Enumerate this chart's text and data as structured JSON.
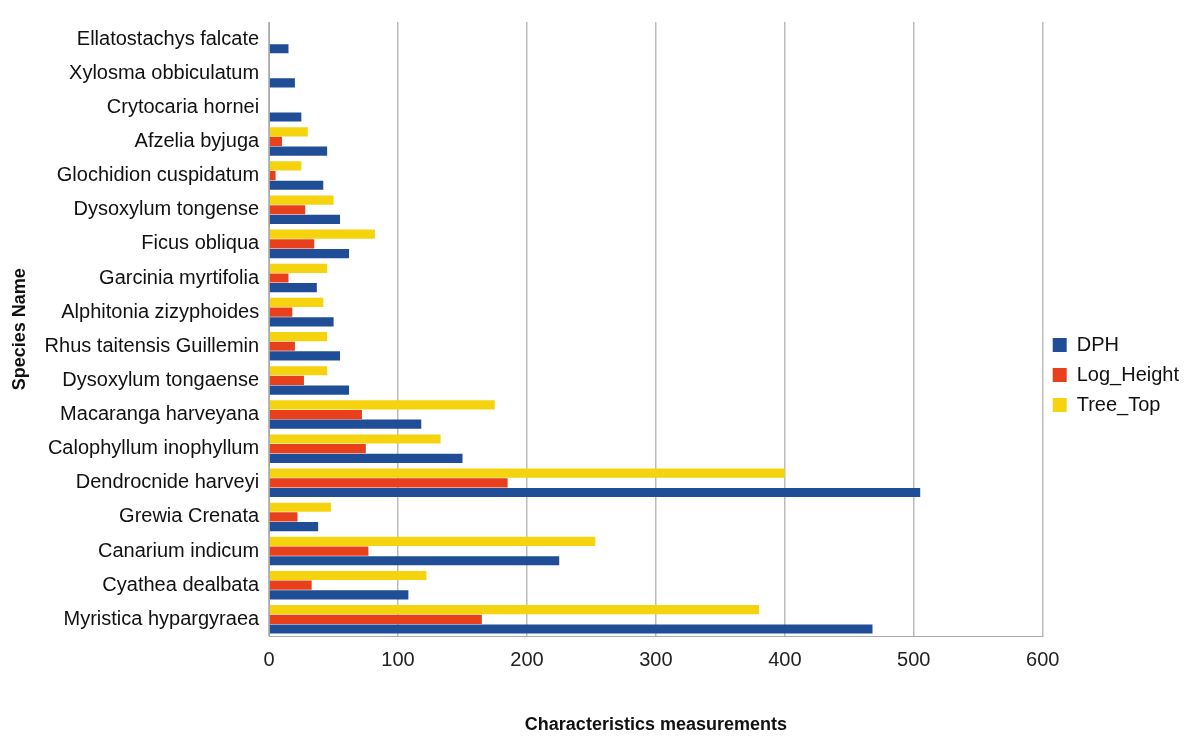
{
  "chart_data": {
    "type": "bar",
    "orientation": "horizontal",
    "xlabel": "Characteristics measurements",
    "ylabel": "Species Name",
    "categories": [
      "Ellatostachys falcate",
      "Xylosma obbiculatum",
      "Crytocaria hornei",
      "Afzelia byjuga",
      "Glochidion cuspidatum",
      "Dysoxylum tongense",
      "Ficus obliqua",
      "Garcinia myrtifolia",
      "Alphitonia zizyphoides",
      "Rhus taitensis Guillemin",
      "Dysoxylum tongaense",
      "Macaranga harveyana",
      "Calophyllum inophyllum",
      "Dendrocnide harveyi",
      "Grewia Crenata",
      "Canarium indicum",
      "Cyathea dealbata",
      "Myristica hypargyraea"
    ],
    "series": [
      {
        "name": "DPH",
        "color": "#1f4e96",
        "values": [
          15,
          20,
          25,
          45,
          42,
          55,
          62,
          37,
          50,
          55,
          62,
          118,
          150,
          505,
          38,
          225,
          108,
          468
        ]
      },
      {
        "name": "Log_Height",
        "color": "#e8401c",
        "values": [
          null,
          null,
          null,
          10,
          5,
          28,
          35,
          15,
          18,
          20,
          27,
          72,
          75,
          185,
          22,
          77,
          33,
          165
        ]
      },
      {
        "name": "Tree_Top",
        "color": "#f5d40f",
        "values": [
          null,
          null,
          null,
          30,
          25,
          50,
          82,
          45,
          42,
          45,
          45,
          175,
          133,
          400,
          48,
          253,
          122,
          380
        ]
      }
    ],
    "xlim": [
      0,
      600
    ],
    "xticks": [
      0,
      100,
      200,
      300,
      400,
      500,
      600
    ],
    "grid": "x",
    "legend": "right"
  }
}
